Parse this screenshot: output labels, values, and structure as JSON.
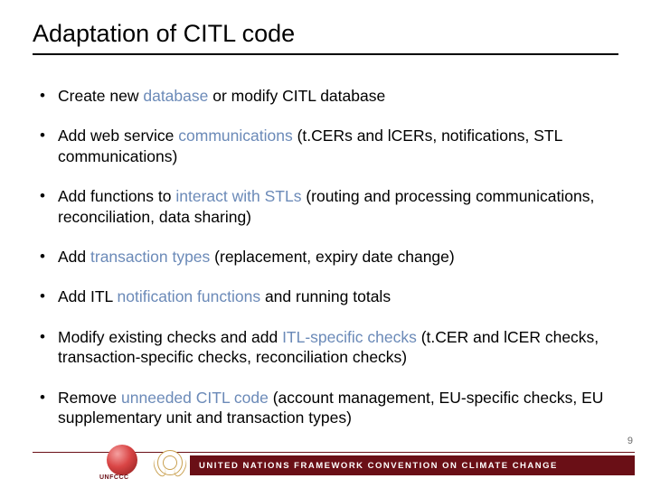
{
  "title": "Adaptation of CITL code",
  "bullets": [
    {
      "pre": "Create new ",
      "kw": "database",
      "post": " or modify CITL database"
    },
    {
      "pre": "Add web service ",
      "kw": "communications",
      "post": " (t.CERs and lCERs, notifications, STL communications)"
    },
    {
      "pre": "Add functions to ",
      "kw": "interact with STLs",
      "post": " (routing and processing communications, reconciliation, data sharing)"
    },
    {
      "pre": "Add ",
      "kw": "transaction types",
      "post": " (replacement, expiry date change)"
    },
    {
      "pre": "Add ITL ",
      "kw": "notification functions",
      "post": " and running totals"
    },
    {
      "pre": "Modify existing checks and add ",
      "kw": "ITL-specific checks",
      "post": " (t.CER and lCER checks, transaction-specific checks, reconciliation checks)"
    },
    {
      "pre": "Remove ",
      "kw": "unneeded CITL code",
      "post": " (account management, EU-specific checks, EU supplementary unit and transaction types)"
    }
  ],
  "page_number": "9",
  "footer": {
    "org_short": "UNFCCC",
    "org_full": "UNITED NATIONS FRAMEWORK CONVENTION ON CLIMATE CHANGE"
  },
  "colors": {
    "keyword": "#6b8ab8",
    "footer_bar": "#6a0f16",
    "background": "#ffffff"
  }
}
